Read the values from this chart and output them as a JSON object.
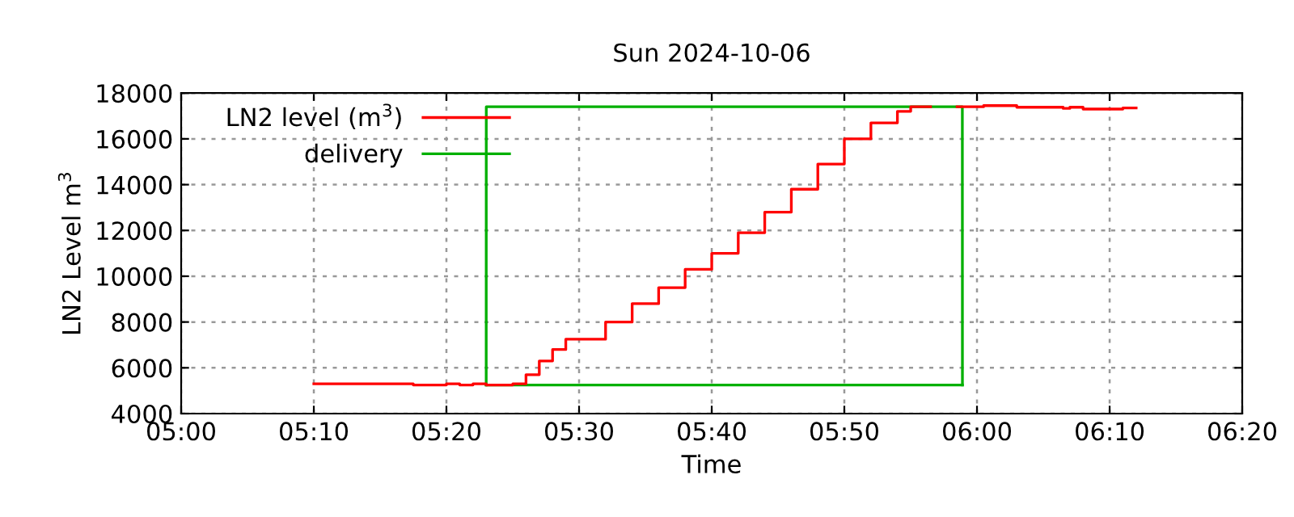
{
  "chart_data": {
    "type": "step",
    "title": "Sun 2024-10-06",
    "xlabel": "Time",
    "ylabel": "LN2 Level m$^{3}$",
    "xlim": [
      5.0,
      6.3333
    ],
    "ylim": [
      4000,
      18000
    ],
    "xticks": [
      {
        "value": 5.0,
        "label": "05:00"
      },
      {
        "value": 5.1667,
        "label": "05:10"
      },
      {
        "value": 5.3333,
        "label": "05:20"
      },
      {
        "value": 5.5,
        "label": "05:30"
      },
      {
        "value": 5.6667,
        "label": "05:40"
      },
      {
        "value": 5.8333,
        "label": "05:50"
      },
      {
        "value": 6.0,
        "label": "06:00"
      },
      {
        "value": 6.1667,
        "label": "06:10"
      },
      {
        "value": 6.3333,
        "label": "06:20"
      }
    ],
    "yticks": [
      4000,
      6000,
      8000,
      10000,
      12000,
      14000,
      16000,
      18000
    ],
    "grid": true,
    "legend": "top left",
    "line_style": "solid",
    "series": [
      {
        "name": "LN2 level (m$^{3}$)",
        "color": "#ff0000",
        "x": [
          5.1667,
          5.2917,
          5.3333,
          5.35,
          5.3667,
          5.3833,
          5.4,
          5.4167,
          5.4333,
          5.45,
          5.4667,
          5.4833,
          5.5,
          5.5333,
          5.5667,
          5.6,
          5.6333,
          5.6667,
          5.7,
          5.7333,
          5.7667,
          5.8,
          5.8333,
          5.8667,
          5.9,
          5.9167,
          5.9333,
          5.9417,
          5.975,
          6.0083,
          6.05,
          6.1083,
          6.1167,
          6.1333,
          6.1833,
          6.2
        ],
        "values": [
          5300,
          5250,
          5300,
          5250,
          5300,
          5250,
          5250,
          5300,
          5700,
          6300,
          6800,
          7250,
          7250,
          8000,
          8800,
          9500,
          10300,
          11000,
          11900,
          12800,
          13800,
          14900,
          16000,
          16700,
          17200,
          17400,
          17400,
          null,
          17400,
          17450,
          17380,
          17330,
          17380,
          17300,
          17350,
          17350
        ]
      },
      {
        "name": "delivery",
        "color": "#00b000",
        "type": "line",
        "x": [
          5.3833,
          5.3834,
          5.9816,
          5.9817
        ],
        "values": [
          5250,
          17400,
          17400,
          5250
        ]
      },
      {
        "color": "#00b000",
        "type": "line",
        "x": [
          5.3833,
          5.9817
        ],
        "values": [
          5250,
          5250
        ]
      }
    ]
  }
}
